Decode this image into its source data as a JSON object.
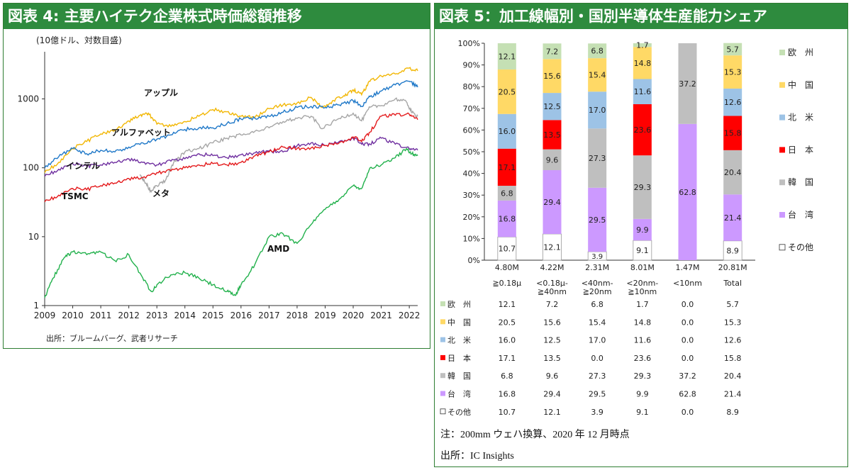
{
  "figure4": {
    "title": "図表 4: 主要ハイテク企業株式時価総額推移",
    "unit_note": "(10億ドル、対数目盛)",
    "source": "出所：ブルームバーグ、武者リサーチ"
  },
  "figure5": {
    "title": "図表 5：加工線幅別・国別半導体生産能力シェア",
    "note": "注：200mm ウェハ換算、2020 年 12 月時点",
    "source": "出所：IC Insights"
  },
  "chart_data": [
    {
      "type": "line",
      "title": "図表 4: 主要ハイテク企業株式時価総額推移",
      "ylabel": "(10億ドル、対数目盛)",
      "yscale": "log",
      "ylim": [
        1,
        4000
      ],
      "yticks": [
        "1",
        "10",
        "100",
        "1000"
      ],
      "xlim": [
        2009,
        2022.3
      ],
      "xticks": [
        "2009",
        "2010",
        "2011",
        "2012",
        "2013",
        "2014",
        "2015",
        "2016",
        "2017",
        "2018",
        "2019",
        "2020",
        "2021",
        "2022"
      ],
      "grid": false,
      "series": [
        {
          "name": "アップル",
          "color": "#f2b705",
          "x": [
            2009,
            2009.5,
            2010,
            2010.5,
            2011,
            2011.5,
            2012,
            2012.4,
            2012.7,
            2013,
            2013.5,
            2014,
            2014.5,
            2015,
            2015.5,
            2016,
            2016.5,
            2017,
            2017.5,
            2018,
            2018.5,
            2018.9,
            2019.3,
            2019.7,
            2020,
            2020.3,
            2020.6,
            2021,
            2021.5,
            2022,
            2022.3
          ],
          "y": [
            85,
            120,
            190,
            240,
            310,
            350,
            480,
            580,
            620,
            430,
            400,
            470,
            560,
            700,
            650,
            560,
            540,
            720,
            820,
            870,
            1050,
            750,
            950,
            1100,
            1350,
            1150,
            1800,
            2150,
            2300,
            2800,
            2550
          ]
        },
        {
          "name": "アルファベット",
          "color": "#1f78c8",
          "x": [
            2009,
            2009.5,
            2010,
            2010.5,
            2011,
            2011.5,
            2012,
            2012.5,
            2013,
            2013.5,
            2014,
            2014.5,
            2015,
            2015.5,
            2016,
            2016.5,
            2017,
            2017.5,
            2018,
            2018.5,
            2019,
            2019.5,
            2020,
            2020.3,
            2020.6,
            2021,
            2021.5,
            2022,
            2022.3
          ],
          "y": [
            100,
            145,
            190,
            160,
            180,
            170,
            200,
            230,
            260,
            300,
            360,
            380,
            380,
            440,
            510,
            520,
            560,
            640,
            750,
            780,
            750,
            820,
            940,
            780,
            1080,
            1300,
            1600,
            1800,
            1480
          ]
        },
        {
          "name": "メタ",
          "color": "#a6a6a6",
          "x": [
            2012.4,
            2012.6,
            2012.8,
            2013,
            2013.3,
            2013.6,
            2014,
            2014.5,
            2015,
            2015.5,
            2016,
            2016.5,
            2017,
            2017.5,
            2018,
            2018.5,
            2018.9,
            2019.5,
            2020,
            2020.3,
            2020.6,
            2021,
            2021.5,
            2021.9,
            2022.1,
            2022.3
          ],
          "y": [
            80,
            60,
            45,
            55,
            65,
            120,
            170,
            190,
            230,
            270,
            300,
            340,
            380,
            470,
            520,
            560,
            370,
            520,
            620,
            480,
            760,
            800,
            1000,
            900,
            630,
            560
          ]
        },
        {
          "name": "インテル",
          "color": "#7030a0",
          "x": [
            2009,
            2009.5,
            2010,
            2010.5,
            2011,
            2011.5,
            2012,
            2012.5,
            2013,
            2013.5,
            2014,
            2014.5,
            2015,
            2015.5,
            2016,
            2016.5,
            2017,
            2017.5,
            2018,
            2018.5,
            2019,
            2019.5,
            2020,
            2020.3,
            2020.6,
            2021,
            2021.5,
            2022,
            2022.3
          ],
          "y": [
            75,
            95,
            115,
            105,
            110,
            120,
            135,
            120,
            110,
            125,
            135,
            160,
            150,
            140,
            155,
            165,
            175,
            170,
            210,
            230,
            210,
            240,
            270,
            220,
            220,
            270,
            220,
            190,
            180
          ]
        },
        {
          "name": "TSMC",
          "color": "#e41a1c",
          "x": [
            2009,
            2009.5,
            2010,
            2010.5,
            2011,
            2011.5,
            2012,
            2012.5,
            2013,
            2013.5,
            2014,
            2014.5,
            2015,
            2015.5,
            2016,
            2016.5,
            2017,
            2017.5,
            2018,
            2018.5,
            2019,
            2019.5,
            2020,
            2020.3,
            2020.6,
            2021,
            2021.5,
            2022,
            2022.3
          ],
          "y": [
            32,
            40,
            50,
            48,
            55,
            60,
            70,
            72,
            85,
            90,
            100,
            110,
            115,
            110,
            120,
            150,
            170,
            200,
            190,
            195,
            210,
            230,
            280,
            240,
            330,
            560,
            580,
            600,
            500
          ]
        },
        {
          "name": "AMD",
          "color": "#22b14c",
          "x": [
            2009,
            2009.3,
            2009.7,
            2010,
            2010.5,
            2011,
            2011.5,
            2012,
            2012.5,
            2012.8,
            2013,
            2013.5,
            2014,
            2014.5,
            2015,
            2015.5,
            2015.8,
            2016,
            2016.5,
            2017,
            2017.5,
            2018,
            2018.5,
            2019,
            2019.5,
            2020,
            2020.3,
            2020.6,
            2021,
            2021.5,
            2021.9,
            2022.1,
            2022.3
          ],
          "y": [
            1.3,
            2.5,
            5,
            6,
            5.5,
            6,
            4.5,
            5.5,
            2.5,
            1.6,
            2,
            2.8,
            3,
            2.5,
            2,
            1.6,
            1.4,
            2,
            4,
            10,
            11,
            8,
            15,
            25,
            35,
            55,
            50,
            100,
            110,
            140,
            190,
            160,
            150
          ]
        }
      ],
      "annotations": [
        "アップル",
        "アルファベット",
        "インテル",
        "TSMC",
        "メタ",
        "AMD"
      ]
    },
    {
      "type": "bar",
      "stacked": true,
      "title": "図表 5：加工線幅別・国別半導体生産能力シェア",
      "ylim": [
        0,
        100
      ],
      "yticks": [
        "0%",
        "10%",
        "20%",
        "30%",
        "40%",
        "50%",
        "60%",
        "70%",
        "80%",
        "90%",
        "100%"
      ],
      "categories": [
        "≧0.18μ",
        "<0.18μ-≧40nm",
        "<40nm-≧20nm",
        "<20nm-≧10nm",
        "<10nm",
        "Total"
      ],
      "category_lines": [
        [
          "≧0.18μ"
        ],
        [
          "<0.18μ-",
          "≧40nm"
        ],
        [
          "<40nm-",
          "≧20nm"
        ],
        [
          "<20nm-",
          "≧10nm"
        ],
        [
          "<10nm"
        ],
        [
          "Total"
        ]
      ],
      "capacity": [
        "4.80M",
        "4.22M",
        "2.31M",
        "8.01M",
        "1.47M",
        "20.81M"
      ],
      "legend_position": "right",
      "series": [
        {
          "name": "その他",
          "legend": "□その他",
          "color": "#ffffff",
          "values": [
            10.7,
            12.1,
            3.9,
            9.1,
            0.0,
            8.9
          ]
        },
        {
          "name": "台 湾",
          "legend": "■台　湾",
          "color": "#cc99ff",
          "values": [
            16.8,
            29.4,
            29.5,
            9.9,
            62.8,
            21.4
          ]
        },
        {
          "name": "韓 国",
          "legend": "■韓　国",
          "color": "#bfbfbf",
          "values": [
            6.8,
            9.6,
            27.3,
            29.3,
            37.2,
            20.4
          ]
        },
        {
          "name": "日 本",
          "legend": "■日　本",
          "color": "#ff0000",
          "values": [
            17.1,
            13.5,
            0.0,
            23.6,
            0.0,
            15.8
          ]
        },
        {
          "name": "北 米",
          "legend": "■北　米",
          "color": "#9dc3e6",
          "values": [
            16.0,
            12.5,
            17.0,
            11.6,
            0.0,
            12.6
          ]
        },
        {
          "name": "中 国",
          "legend": "■中　国",
          "color": "#ffd966",
          "values": [
            20.5,
            15.6,
            15.4,
            14.8,
            0.0,
            15.3
          ]
        },
        {
          "name": "欧 州",
          "legend": "■欧　州",
          "color": "#c5e0b4",
          "values": [
            12.1,
            7.2,
            6.8,
            1.7,
            0.0,
            5.7
          ]
        }
      ],
      "table_order": [
        "欧 州",
        "中 国",
        "北 米",
        "日 本",
        "韓 国",
        "台 湾",
        "その他"
      ]
    }
  ]
}
